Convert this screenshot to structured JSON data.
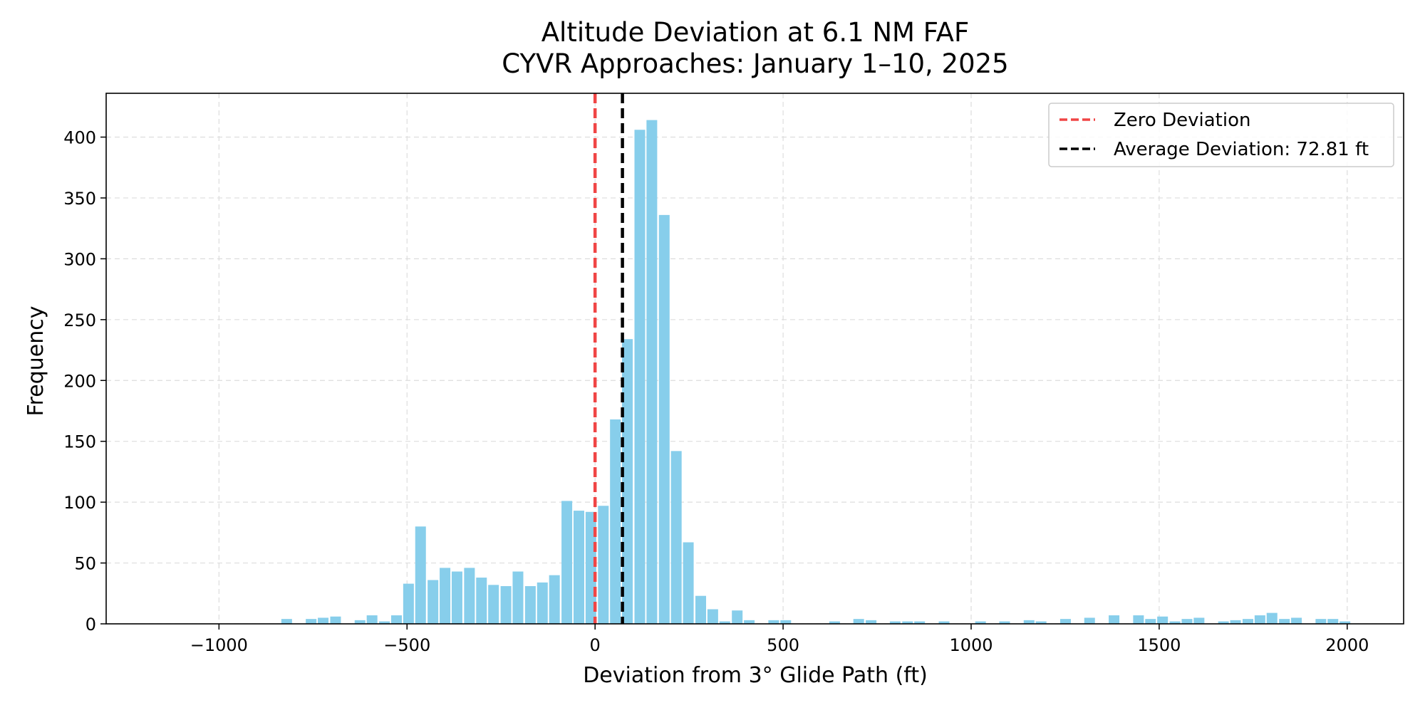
{
  "colors": {
    "bar": "#87ceeb",
    "zero_line": "#f04545",
    "mean_line": "#000000",
    "grid": "#dddddd",
    "axes": "#000000"
  },
  "chart_data": {
    "type": "bar",
    "title": "Altitude Deviation at 6.1 NM FAF",
    "subtitle": "CYVR Approaches: January 1–10, 2025",
    "xlabel": "Deviation from 3° Glide Path (ft)",
    "ylabel": "Frequency",
    "xlim": [
      -1300,
      2150
    ],
    "ylim": [
      0,
      436
    ],
    "xticks": [
      -1000,
      -500,
      0,
      500,
      1000,
      1500,
      2000
    ],
    "xtick_labels": [
      "−1000",
      "−500",
      "0",
      "500",
      "1000",
      "1500",
      "2000"
    ],
    "yticks": [
      0,
      50,
      100,
      150,
      200,
      250,
      300,
      350,
      400
    ],
    "ytick_labels": [
      "0",
      "50",
      "100",
      "150",
      "200",
      "250",
      "300",
      "350",
      "400"
    ],
    "grid": true,
    "bin_width": 32.3,
    "bins": [
      {
        "x": -820,
        "y": 4
      },
      {
        "x": -755,
        "y": 4
      },
      {
        "x": -723,
        "y": 5
      },
      {
        "x": -690,
        "y": 6
      },
      {
        "x": -625,
        "y": 3
      },
      {
        "x": -593,
        "y": 7
      },
      {
        "x": -560,
        "y": 2
      },
      {
        "x": -528,
        "y": 7
      },
      {
        "x": -496,
        "y": 33
      },
      {
        "x": -464,
        "y": 80
      },
      {
        "x": -431,
        "y": 36
      },
      {
        "x": -399,
        "y": 46
      },
      {
        "x": -367,
        "y": 43
      },
      {
        "x": -334,
        "y": 46
      },
      {
        "x": -302,
        "y": 38
      },
      {
        "x": -270,
        "y": 32
      },
      {
        "x": -237,
        "y": 31
      },
      {
        "x": -205,
        "y": 43
      },
      {
        "x": -172,
        "y": 31
      },
      {
        "x": -140,
        "y": 34
      },
      {
        "x": -108,
        "y": 40
      },
      {
        "x": -75,
        "y": 101
      },
      {
        "x": -43,
        "y": 93
      },
      {
        "x": -11,
        "y": 92
      },
      {
        "x": 22,
        "y": 97
      },
      {
        "x": 54,
        "y": 168
      },
      {
        "x": 86,
        "y": 234
      },
      {
        "x": 119,
        "y": 406
      },
      {
        "x": 151,
        "y": 414
      },
      {
        "x": 184,
        "y": 336
      },
      {
        "x": 216,
        "y": 142
      },
      {
        "x": 248,
        "y": 67
      },
      {
        "x": 281,
        "y": 23
      },
      {
        "x": 313,
        "y": 12
      },
      {
        "x": 345,
        "y": 2
      },
      {
        "x": 378,
        "y": 11
      },
      {
        "x": 410,
        "y": 3
      },
      {
        "x": 475,
        "y": 3
      },
      {
        "x": 507,
        "y": 3
      },
      {
        "x": 637,
        "y": 2
      },
      {
        "x": 701,
        "y": 4
      },
      {
        "x": 734,
        "y": 3
      },
      {
        "x": 798,
        "y": 2
      },
      {
        "x": 831,
        "y": 2
      },
      {
        "x": 863,
        "y": 2
      },
      {
        "x": 928,
        "y": 2
      },
      {
        "x": 1025,
        "y": 2
      },
      {
        "x": 1089,
        "y": 2
      },
      {
        "x": 1154,
        "y": 3
      },
      {
        "x": 1186,
        "y": 2
      },
      {
        "x": 1251,
        "y": 4
      },
      {
        "x": 1315,
        "y": 5
      },
      {
        "x": 1380,
        "y": 7
      },
      {
        "x": 1445,
        "y": 7
      },
      {
        "x": 1477,
        "y": 4
      },
      {
        "x": 1509,
        "y": 6
      },
      {
        "x": 1542,
        "y": 2
      },
      {
        "x": 1574,
        "y": 4
      },
      {
        "x": 1606,
        "y": 5
      },
      {
        "x": 1671,
        "y": 2
      },
      {
        "x": 1703,
        "y": 3
      },
      {
        "x": 1736,
        "y": 4
      },
      {
        "x": 1768,
        "y": 7
      },
      {
        "x": 1800,
        "y": 9
      },
      {
        "x": 1833,
        "y": 4
      },
      {
        "x": 1865,
        "y": 5
      },
      {
        "x": 1930,
        "y": 4
      },
      {
        "x": 1962,
        "y": 4
      },
      {
        "x": 1994,
        "y": 2
      }
    ],
    "reference_lines": [
      {
        "name": "zero",
        "x": 0,
        "label": "Zero Deviation",
        "color": "#f04545",
        "style": "dashed"
      },
      {
        "name": "mean",
        "x": 72.81,
        "label": "Average Deviation: 72.81 ft",
        "color": "#000000",
        "style": "dashed"
      }
    ],
    "legend_position": "top-right"
  }
}
